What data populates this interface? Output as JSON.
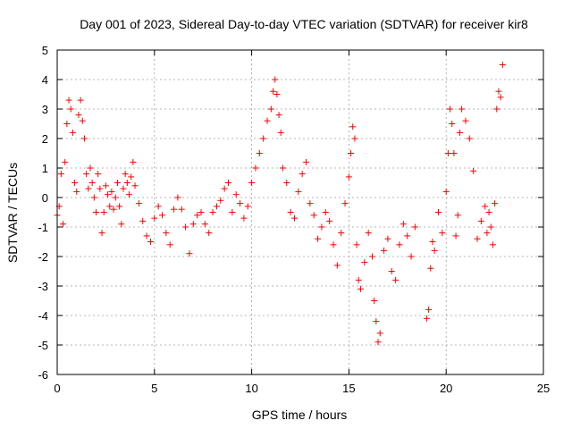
{
  "chart_data": {
    "type": "scatter",
    "title": "Day 001 of 2023, Sidereal Day-to-day VTEC variation (SDTVAR) for receiver kir8",
    "xlabel": "GPS time / hours",
    "ylabel": "SDTVAR / TECUs",
    "xlim": [
      0,
      25
    ],
    "ylim": [
      -6,
      5
    ],
    "xticks": [
      0,
      5,
      10,
      15,
      20,
      25
    ],
    "yticks": [
      -6,
      -5,
      -4,
      -3,
      -2,
      -1,
      0,
      1,
      2,
      3,
      4,
      5
    ],
    "grid": true,
    "marker": "+",
    "color": "#ff0000",
    "series": [
      {
        "name": "SDTVAR",
        "x": [
          0.0,
          0.1,
          0.2,
          0.3,
          0.4,
          0.5,
          0.6,
          0.7,
          0.8,
          0.9,
          1.0,
          1.1,
          1.2,
          1.3,
          1.4,
          1.5,
          1.6,
          1.7,
          1.8,
          1.9,
          2.0,
          2.1,
          2.2,
          2.3,
          2.4,
          2.5,
          2.6,
          2.7,
          2.8,
          2.9,
          3.0,
          3.1,
          3.2,
          3.3,
          3.4,
          3.5,
          3.6,
          3.7,
          3.8,
          3.9,
          4.0,
          4.2,
          4.4,
          4.6,
          4.8,
          5.0,
          5.2,
          5.4,
          5.6,
          5.8,
          6.0,
          6.2,
          6.4,
          6.6,
          6.8,
          7.0,
          7.2,
          7.4,
          7.6,
          7.8,
          8.0,
          8.2,
          8.4,
          8.6,
          8.8,
          9.0,
          9.2,
          9.4,
          9.6,
          9.8,
          10.0,
          10.2,
          10.4,
          10.6,
          10.8,
          11.0,
          11.1,
          11.2,
          11.3,
          11.4,
          11.5,
          11.6,
          11.8,
          12.0,
          12.2,
          12.4,
          12.6,
          12.8,
          13.0,
          13.2,
          13.4,
          13.6,
          13.8,
          14.0,
          14.2,
          14.4,
          14.6,
          14.8,
          15.0,
          15.1,
          15.2,
          15.3,
          15.4,
          15.5,
          15.6,
          15.8,
          16.0,
          16.2,
          16.3,
          16.4,
          16.5,
          16.6,
          16.8,
          17.0,
          17.2,
          17.4,
          17.6,
          17.8,
          18.0,
          18.2,
          18.4,
          19.0,
          19.1,
          19.2,
          19.3,
          19.4,
          19.6,
          19.8,
          20.0,
          20.1,
          20.2,
          20.3,
          20.4,
          20.5,
          20.6,
          20.7,
          20.8,
          21.0,
          21.2,
          21.4,
          21.6,
          21.8,
          22.0,
          22.1,
          22.2,
          22.3,
          22.4,
          22.5,
          22.6,
          22.7,
          22.8,
          22.9
        ],
        "y": [
          -0.6,
          -0.3,
          0.8,
          -0.9,
          1.2,
          2.5,
          3.3,
          3.0,
          2.2,
          0.5,
          0.2,
          2.8,
          3.3,
          2.6,
          2.0,
          0.8,
          0.3,
          1.0,
          0.5,
          0.0,
          -0.5,
          0.8,
          0.3,
          -1.2,
          -0.5,
          0.4,
          0.1,
          -0.3,
          0.2,
          -0.4,
          0.0,
          0.5,
          -0.3,
          -0.9,
          0.3,
          0.8,
          0.5,
          0.1,
          0.7,
          1.2,
          0.4,
          -0.2,
          -0.8,
          -1.3,
          -1.5,
          -0.7,
          -0.3,
          -0.6,
          -1.2,
          -1.6,
          -0.4,
          0.0,
          -0.4,
          -1.0,
          -1.9,
          -0.9,
          -0.6,
          -0.5,
          -0.9,
          -1.2,
          -0.5,
          -0.3,
          -0.1,
          0.3,
          0.5,
          -0.5,
          0.1,
          -0.2,
          -0.7,
          -0.3,
          0.5,
          1.0,
          1.5,
          2.0,
          2.6,
          3.0,
          3.6,
          4.0,
          3.5,
          2.8,
          2.2,
          1.0,
          0.5,
          -0.5,
          -0.7,
          0.2,
          0.8,
          1.2,
          -0.2,
          -0.6,
          -1.4,
          -1.0,
          -0.5,
          -0.8,
          -1.6,
          -2.3,
          -1.2,
          -0.2,
          0.7,
          1.5,
          2.4,
          2.0,
          -1.6,
          -2.8,
          -3.1,
          -2.2,
          -1.2,
          -2.0,
          -3.5,
          -4.2,
          -4.9,
          -4.6,
          -1.8,
          -1.4,
          -2.5,
          -2.8,
          -1.6,
          -0.9,
          -1.3,
          -2.0,
          -1.0,
          -4.1,
          -3.8,
          -2.4,
          -1.5,
          -1.8,
          -0.5,
          -1.2,
          0.2,
          1.5,
          3.0,
          2.5,
          1.5,
          -1.3,
          -0.6,
          2.2,
          3.0,
          2.6,
          2.0,
          0.9,
          -1.4,
          -0.8,
          -0.3,
          -1.2,
          -0.5,
          -1.0,
          -1.6,
          -0.2,
          3.0,
          3.6,
          3.4,
          4.5
        ]
      }
    ]
  }
}
